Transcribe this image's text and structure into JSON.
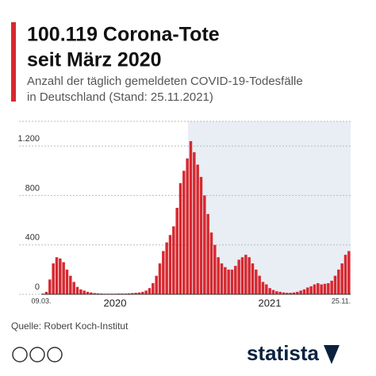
{
  "chart_data": {
    "type": "bar",
    "title": [
      "100.119 Corona-Tote",
      "seit März 2020"
    ],
    "subtitle": [
      "Anzahl der täglich gemeldeten COVID-19-Todesfälle",
      "in Deutschland (Stand: 25.11.2021)"
    ],
    "categories": [
      "09.03.",
      null,
      null,
      null,
      null,
      null,
      null,
      null,
      null,
      null,
      null,
      null,
      null,
      null,
      null,
      null,
      null,
      null,
      null,
      null,
      null,
      null,
      null,
      null,
      null,
      null,
      null,
      null,
      null,
      null,
      null,
      null,
      null,
      null,
      null,
      null,
      null,
      null,
      null,
      null,
      null,
      null,
      null,
      null,
      null,
      null,
      null,
      null,
      null,
      null,
      null,
      null,
      null,
      null,
      null,
      null,
      null,
      null,
      null,
      null,
      null,
      null,
      null,
      null,
      null,
      null,
      null,
      null,
      null,
      null,
      null,
      null,
      null,
      null,
      null,
      null,
      null,
      null,
      null,
      null,
      null,
      null,
      null,
      null,
      null,
      null,
      null,
      null,
      null,
      "25.11."
    ],
    "values": [
      5,
      20,
      120,
      250,
      300,
      290,
      260,
      200,
      150,
      100,
      60,
      40,
      30,
      20,
      15,
      10,
      8,
      6,
      5,
      5,
      5,
      5,
      6,
      6,
      6,
      8,
      10,
      12,
      15,
      20,
      30,
      50,
      90,
      150,
      250,
      350,
      420,
      480,
      550,
      700,
      900,
      1000,
      1100,
      1240,
      1150,
      1050,
      950,
      800,
      650,
      500,
      400,
      300,
      250,
      220,
      200,
      200,
      230,
      280,
      300,
      320,
      300,
      250,
      200,
      150,
      100,
      80,
      50,
      35,
      25,
      20,
      15,
      12,
      12,
      15,
      20,
      30,
      40,
      55,
      65,
      80,
      90,
      80,
      85,
      90,
      110,
      150,
      200,
      250,
      320,
      350
    ],
    "color": "#d7282f",
    "year_labels": [
      "2020",
      "2021"
    ],
    "ylim": [
      0,
      1400
    ],
    "yticks": [
      0,
      400,
      800,
      {
        "value": 1200,
        "label": "1.200"
      }
    ],
    "grid": true
  },
  "source": "Quelle: Robert Koch-Institut",
  "brand": "statista"
}
